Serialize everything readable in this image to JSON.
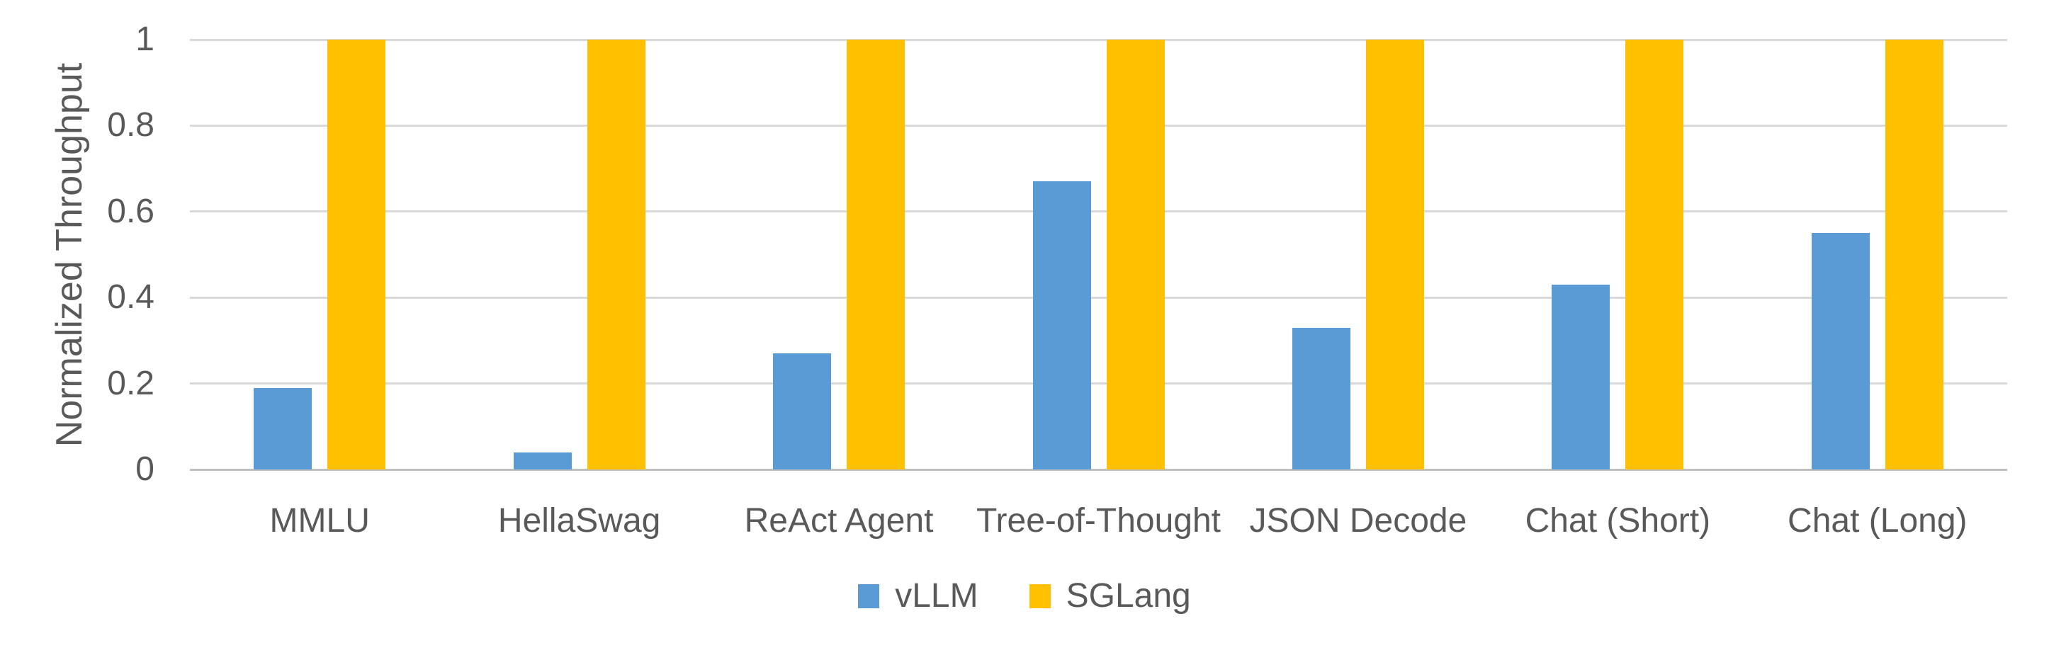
{
  "chart_data": {
    "type": "bar",
    "title": "",
    "xlabel": "",
    "ylabel": "Normalized Throughput",
    "categories": [
      "MMLU",
      "HellaSwag",
      "ReAct Agent",
      "Tree-of-Thought",
      "JSON Decode",
      "Chat (Short)",
      "Chat (Long)"
    ],
    "series": [
      {
        "name": "vLLM",
        "color": "#5B9BD5",
        "values": [
          0.19,
          0.04,
          0.27,
          0.67,
          0.33,
          0.43,
          0.55
        ]
      },
      {
        "name": "SGLang",
        "color": "#FFC000",
        "values": [
          1,
          1,
          1,
          1,
          1,
          1,
          1
        ]
      }
    ],
    "ylim": [
      0,
      1
    ],
    "yticks": [
      0,
      0.2,
      0.4,
      0.6,
      0.8,
      1
    ],
    "ytick_labels": [
      "0",
      "0.2",
      "0.4",
      "0.6",
      "0.8",
      "1"
    ],
    "grid": "horizontal-only",
    "legend_position": "bottom-center"
  },
  "colors": {
    "text": "#595959",
    "gridline": "#D9D9D9",
    "axis_line": "#BFBFBF",
    "background": "#FFFFFF"
  }
}
